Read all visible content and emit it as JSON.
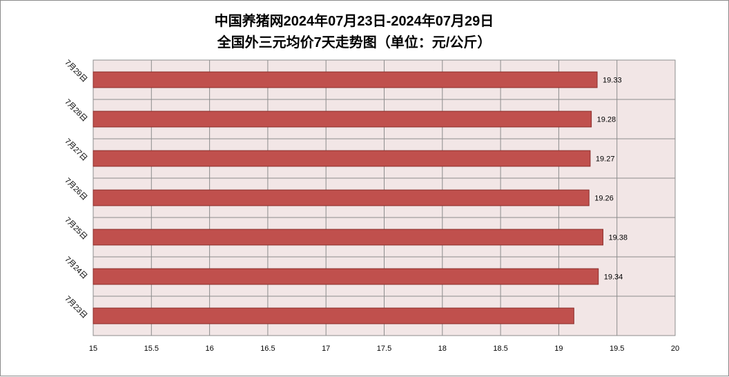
{
  "chart_data": {
    "type": "bar",
    "orientation": "horizontal",
    "title": "中国养猪网2024年07月23日-2024年07月29日",
    "subtitle": "全国外三元均价7天走势图（单位：元/公斤）",
    "categories": [
      "7月23日",
      "7月24日",
      "7月25日",
      "7月26日",
      "7月27日",
      "7月28日",
      "7月29日"
    ],
    "values": [
      19.13,
      19.34,
      19.38,
      19.26,
      19.27,
      19.28,
      19.33
    ],
    "data_labels": [
      "",
      "19.34",
      "19.38",
      "19.26",
      "19.27",
      "19.28",
      "19.33"
    ],
    "xlim": [
      15,
      20
    ],
    "xticks": [
      "15",
      "15.5",
      "16",
      "16.5",
      "17",
      "17.5",
      "18",
      "18.5",
      "19",
      "19.5",
      "20"
    ],
    "grid": true,
    "legend": "none",
    "colors": {
      "bar_fill": "#c0504d",
      "bar_stroke": "#8b2e2c",
      "plot_bg": "#f2e6e6",
      "grid": "#8c8c8c"
    }
  }
}
